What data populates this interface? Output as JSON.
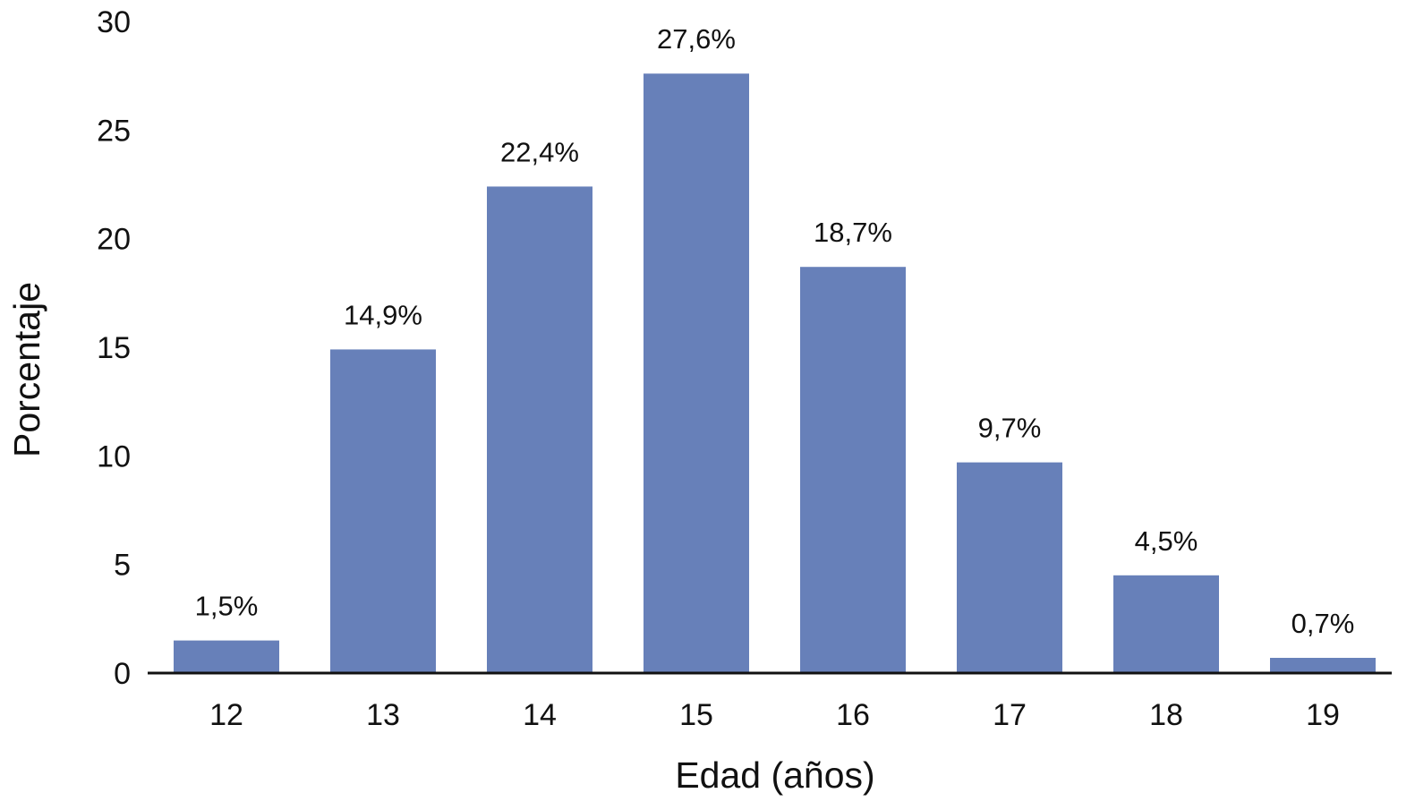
{
  "chart_data": {
    "type": "bar",
    "categories": [
      "12",
      "13",
      "14",
      "15",
      "16",
      "17",
      "18",
      "19"
    ],
    "values": [
      1.5,
      14.9,
      22.4,
      27.6,
      18.7,
      9.7,
      4.5,
      0.7
    ],
    "data_labels": [
      "1,5%",
      "14,9%",
      "22,4%",
      "27,6%",
      "18,7%",
      "9,7%",
      "4,5%",
      "0,7%"
    ],
    "title": "",
    "xlabel": "Edad (años)",
    "ylabel": "Porcentaje",
    "ylim": [
      0,
      30
    ],
    "yticks": [
      "0",
      "5",
      "10",
      "15",
      "20",
      "25",
      "30"
    ],
    "grid": false,
    "legend": "none",
    "bar_color": "#6780b9",
    "axis_color": "#111111"
  }
}
